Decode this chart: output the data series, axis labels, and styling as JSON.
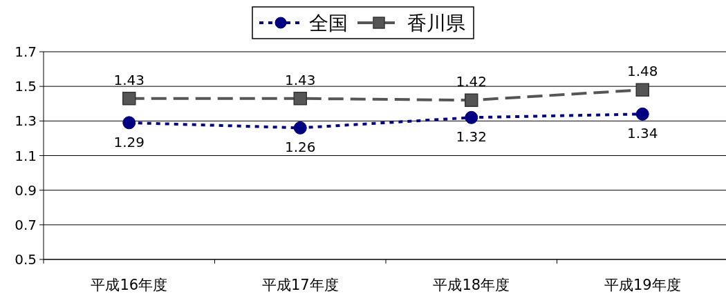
{
  "chart_data": {
    "type": "line",
    "categories": [
      "平成16年度",
      "平成17年度",
      "平成18年度",
      "平成19年度"
    ],
    "series": [
      {
        "name": "全国",
        "color": "#000080",
        "values": [
          1.29,
          1.26,
          1.32,
          1.34
        ],
        "marker": "circle",
        "line_style": "dotted"
      },
      {
        "name": "香川県",
        "color": "#555555",
        "values": [
          1.43,
          1.43,
          1.42,
          1.48
        ],
        "marker": "square",
        "line_style": "dashed"
      }
    ],
    "ylim": [
      0.5,
      1.7
    ],
    "yticks": [
      0.5,
      0.7,
      0.9,
      1.1,
      1.3,
      1.5,
      1.7
    ],
    "grid": "y",
    "legend": "top",
    "data_labels": true
  }
}
